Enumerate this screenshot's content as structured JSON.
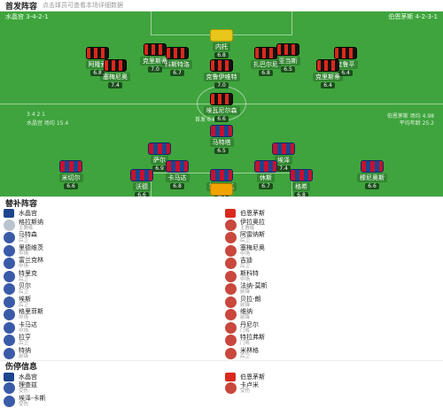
{
  "header": {
    "title": "首发阵容",
    "subtitle": "点击球员可查看本场详细数据"
  },
  "home": {
    "name": "水晶宫",
    "formation": "3-4-2-1",
    "coach_label": "主教练",
    "coach": "格拉斯纳"
  },
  "away": {
    "name": "伯恩茅斯",
    "formation": "4-2-3-1",
    "coach_label": "主教练",
    "coach": "伊拉奥拉"
  },
  "pitch": {
    "home_team_label": "水晶宫 3-4-2-1",
    "away_team_label": "伯恩茅斯 4-2-3-1",
    "away_gk": {
      "name": "内托",
      "rating": "6.8"
    },
    "away_def": [
      {
        "name": "阿隆索",
        "rating": "6.8"
      },
      {
        "name": "科斯特洛",
        "rating": "6.7"
      },
      {
        "name": "扎巴尔尼",
        "rating": "6.8"
      },
      {
        "name": "克鲁平",
        "rating": "6.4"
      }
    ],
    "away_mid": [
      {
        "name": "克里斯蒂",
        "rating": "7.0"
      },
      {
        "name": "亚当斯",
        "rating": "6.5"
      }
    ],
    "away_am": [
      {
        "name": "塞梅尼奥",
        "rating": "7.4"
      },
      {
        "name": "克鲁伊维特",
        "rating": "7.0"
      },
      {
        "name": "克里斯蒂",
        "rating": "6.4"
      }
    ],
    "away_fw": {
      "name": "埃瓦尼尔森",
      "rating": "6.6"
    },
    "home_fw": {
      "name": "马特塔",
      "rating": "6.5"
    },
    "home_am": [
      {
        "name": "萨尔",
        "rating": "6.9"
      },
      {
        "name": "埃泽",
        "rating": "7.4"
      }
    ],
    "home_mid": [
      {
        "name": "米切尔",
        "rating": "6.6"
      },
      {
        "name": "卡马达",
        "rating": "6.8"
      },
      {
        "name": "休斯",
        "rating": "6.7"
      },
      {
        "name": "穆尼奥斯",
        "rating": "6.6"
      }
    ],
    "home_def": [
      {
        "name": "沃德",
        "rating": "6.6"
      },
      {
        "name": "拉克罗瓦",
        "rating": "6.4"
      },
      {
        "name": "格希",
        "rating": "6.8"
      }
    ],
    "home_gk": {
      "name": "亨德森",
      "rating": "6.9"
    },
    "legend_home": [
      "3 4 2 1",
      "水晶宫 场均 15.4"
    ],
    "legend_away": [
      "伯恩茅斯 场均 4.98",
      "平均年龄 25.2"
    ],
    "center_text": "首发 6.8 比分"
  },
  "subs": {
    "title": "替补阵容",
    "home": [
      {
        "name": "马特森",
        "pos": "后卫"
      },
      {
        "name": "里德维茨",
        "pos": "中场"
      },
      {
        "name": "富兰克林",
        "pos": "中场"
      },
      {
        "name": "特里克",
        "pos": "后卫"
      },
      {
        "name": "贝尔",
        "pos": "后卫"
      },
      {
        "name": "埃斯",
        "pos": "后卫"
      },
      {
        "name": "格里菲斯",
        "pos": "中场"
      },
      {
        "name": "卡马达",
        "pos": "中场"
      },
      {
        "name": "拉亨",
        "pos": "后卫"
      },
      {
        "name": "特纳",
        "pos": "前锋"
      }
    ],
    "away": [
      {
        "name": "阿雷纳斯",
        "pos": "后卫"
      },
      {
        "name": "塞梅尼奥",
        "pos": "中场"
      },
      {
        "name": "吉迪",
        "pos": "后卫"
      },
      {
        "name": "斯科特",
        "pos": "中场"
      },
      {
        "name": "法纳-莫斯",
        "pos": "前锋"
      },
      {
        "name": "贝拉-朗",
        "pos": "前锋"
      },
      {
        "name": "维纳",
        "pos": "前锋"
      },
      {
        "name": "丹尼尔",
        "pos": "门将"
      },
      {
        "name": "特拉弗斯",
        "pos": "门将"
      },
      {
        "name": "米林格",
        "pos": "后卫"
      }
    ]
  },
  "injuries": {
    "title": "伤停信息",
    "home": [
      {
        "name": "理查兹",
        "pos": "受伤"
      },
      {
        "name": "埃泽-卡斯",
        "pos": "受伤"
      }
    ],
    "away": [
      {
        "name": "卡卢米",
        "pos": "受伤"
      }
    ]
  },
  "colors": {
    "pitch": "#3fa43d",
    "accent": "#f36b1c"
  }
}
